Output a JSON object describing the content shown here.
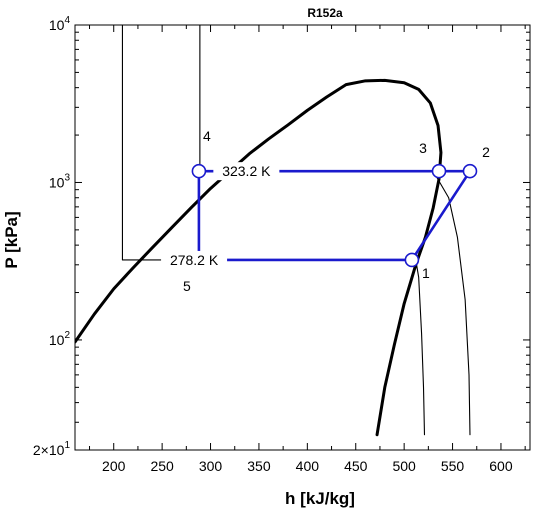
{
  "chart_data": {
    "type": "line",
    "title": "R152a",
    "xlabel": "h [kJ/kg]",
    "ylabel": "P [kPa]",
    "xlim": [
      160,
      630
    ],
    "ylim": [
      20,
      10000
    ],
    "y_scale": "log",
    "grid": false,
    "x_ticks": [
      {
        "value": 200,
        "label": "200"
      },
      {
        "value": 250,
        "label": "250"
      },
      {
        "value": 300,
        "label": "300"
      },
      {
        "value": 350,
        "label": "350"
      },
      {
        "value": 400,
        "label": "400"
      },
      {
        "value": 450,
        "label": "450"
      },
      {
        "value": 500,
        "label": "500"
      },
      {
        "value": 550,
        "label": "550"
      },
      {
        "value": 600,
        "label": "600"
      }
    ],
    "y_ticks": [
      {
        "value": 20,
        "base": "2×10",
        "exp": "1"
      },
      {
        "value": 100,
        "base": "10",
        "exp": "2"
      },
      {
        "value": 1000,
        "base": "10",
        "exp": "3"
      },
      {
        "value": 10000,
        "base": "10",
        "exp": "4"
      }
    ],
    "series": [
      {
        "role": "saturation-dome",
        "color": "#000000",
        "x": [
          160,
          180,
          200,
          220,
          240,
          260,
          280,
          300,
          320,
          340,
          360,
          380,
          400,
          420,
          440,
          460,
          480,
          500,
          515,
          527,
          535,
          538,
          536,
          530,
          522,
          512,
          500,
          490,
          480,
          472
        ],
        "y": [
          97,
          146,
          211,
          287,
          386,
          517,
          692,
          916,
          1180,
          1520,
          1890,
          2320,
          2870,
          3490,
          4180,
          4420,
          4450,
          4300,
          3900,
          3200,
          2300,
          1550,
          1050,
          690,
          450,
          300,
          170,
          94,
          50,
          25
        ]
      },
      {
        "role": "isotherm-low",
        "color": "#000000",
        "x": [
          209,
          209,
          209,
          209,
          209,
          280,
          320,
          360,
          400,
          440,
          480,
          512,
          515,
          518,
          520,
          521
        ],
        "y": [
          10000,
          5000,
          1500,
          700,
          322,
          322,
          322,
          322,
          322,
          322,
          322,
          322,
          250,
          110,
          50,
          25
        ]
      },
      {
        "role": "isotherm-high",
        "color": "#000000",
        "x": [
          289,
          289,
          289,
          289,
          289,
          350,
          400,
          450,
          500,
          530,
          546,
          555,
          563,
          567,
          568
        ],
        "y": [
          10000,
          5000,
          2500,
          1500,
          1180,
          1180,
          1180,
          1180,
          1180,
          1180,
          800,
          450,
          180,
          60,
          25
        ]
      },
      {
        "role": "refrigeration-cycle",
        "color": "#1a1acd",
        "x": [
          508,
          568,
          536,
          288,
          288,
          508
        ],
        "y": [
          322,
          1180,
          1180,
          1180,
          322,
          322
        ]
      }
    ],
    "points": [
      {
        "label": "1",
        "h": 508,
        "P": 322
      },
      {
        "label": "2",
        "h": 568,
        "P": 1180
      },
      {
        "label": "3",
        "h": 536,
        "P": 1180
      },
      {
        "label": "4",
        "h": 288,
        "P": 1180
      },
      {
        "label": "5",
        "h": 288,
        "P": 322
      }
    ],
    "annotations": [
      {
        "text": "323.2 K",
        "h": 337,
        "P": 1180
      },
      {
        "text": "278.2 K",
        "h": 283,
        "P": 322
      }
    ]
  }
}
